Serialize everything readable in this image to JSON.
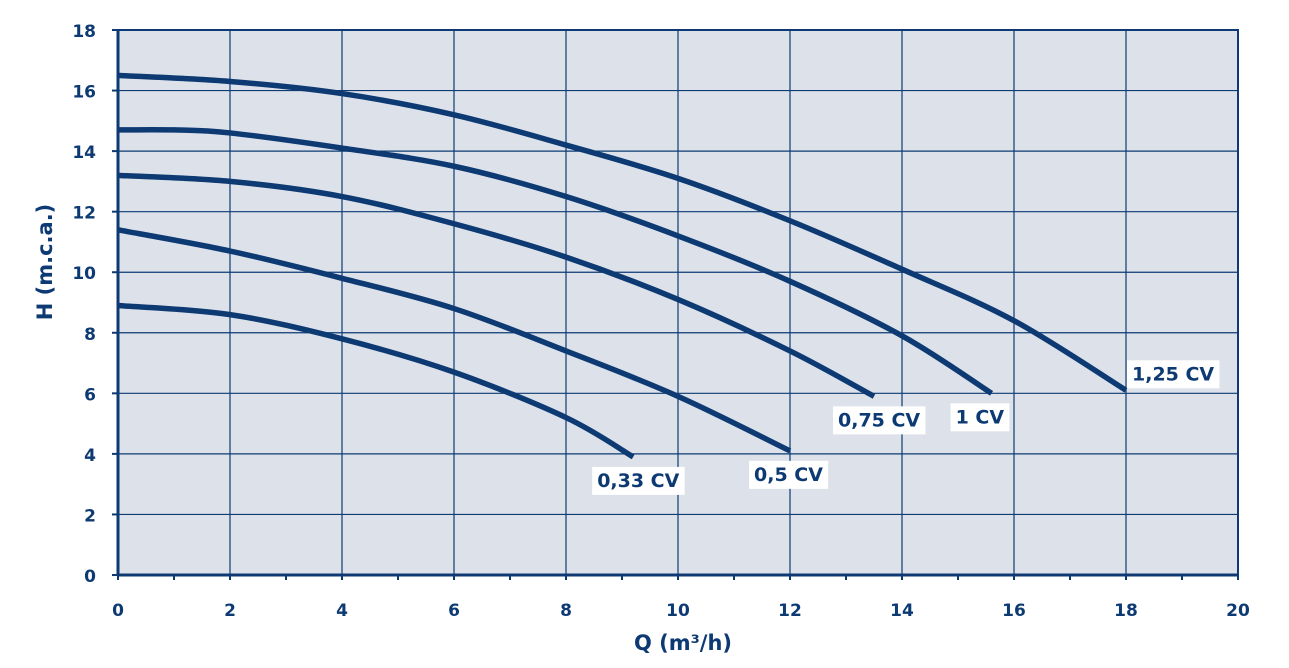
{
  "chart_data": {
    "type": "line",
    "title": "",
    "xlabel": "Q (m³/h)",
    "ylabel": "H (m.c.a.)",
    "xlim": [
      0,
      20
    ],
    "ylim": [
      0,
      18
    ],
    "x_ticks": [
      "0",
      "2",
      "4",
      "6",
      "8",
      "10",
      "12",
      "14",
      "16",
      "18",
      "20"
    ],
    "y_ticks": [
      "0",
      "2",
      "4",
      "6",
      "8",
      "10",
      "12",
      "14",
      "16",
      "18"
    ],
    "grid": true,
    "colors": {
      "plot_background": "#dde2ea",
      "line": "#0d3a73",
      "grid": "#0d3a73"
    },
    "series": [
      {
        "name": "0,33 CV",
        "points": [
          [
            0,
            8.9
          ],
          [
            2,
            8.6
          ],
          [
            4,
            7.8
          ],
          [
            6,
            6.7
          ],
          [
            8,
            5.2
          ],
          [
            9.2,
            3.9
          ]
        ]
      },
      {
        "name": "0,5 CV",
        "points": [
          [
            0,
            11.4
          ],
          [
            2,
            10.7
          ],
          [
            4,
            9.8
          ],
          [
            6,
            8.8
          ],
          [
            8,
            7.4
          ],
          [
            10,
            5.9
          ],
          [
            12,
            4.1
          ]
        ]
      },
      {
        "name": "0,75 CV",
        "points": [
          [
            0,
            13.2
          ],
          [
            2,
            13.0
          ],
          [
            4,
            12.5
          ],
          [
            6,
            11.6
          ],
          [
            8,
            10.5
          ],
          [
            10,
            9.1
          ],
          [
            12,
            7.4
          ],
          [
            13.5,
            5.9
          ]
        ]
      },
      {
        "name": "1 CV",
        "points": [
          [
            0,
            14.7
          ],
          [
            1,
            14.7
          ],
          [
            2,
            14.6
          ],
          [
            4,
            14.1
          ],
          [
            6,
            13.5
          ],
          [
            8,
            12.5
          ],
          [
            10,
            11.2
          ],
          [
            12,
            9.7
          ],
          [
            14,
            7.9
          ],
          [
            15.6,
            6.0
          ]
        ]
      },
      {
        "name": "1,25 CV",
        "points": [
          [
            0,
            16.5
          ],
          [
            2,
            16.3
          ],
          [
            4,
            15.9
          ],
          [
            6,
            15.2
          ],
          [
            8,
            14.2
          ],
          [
            10,
            13.1
          ],
          [
            12,
            11.7
          ],
          [
            14,
            10.1
          ],
          [
            16,
            8.4
          ],
          [
            18,
            6.1
          ]
        ]
      }
    ]
  }
}
